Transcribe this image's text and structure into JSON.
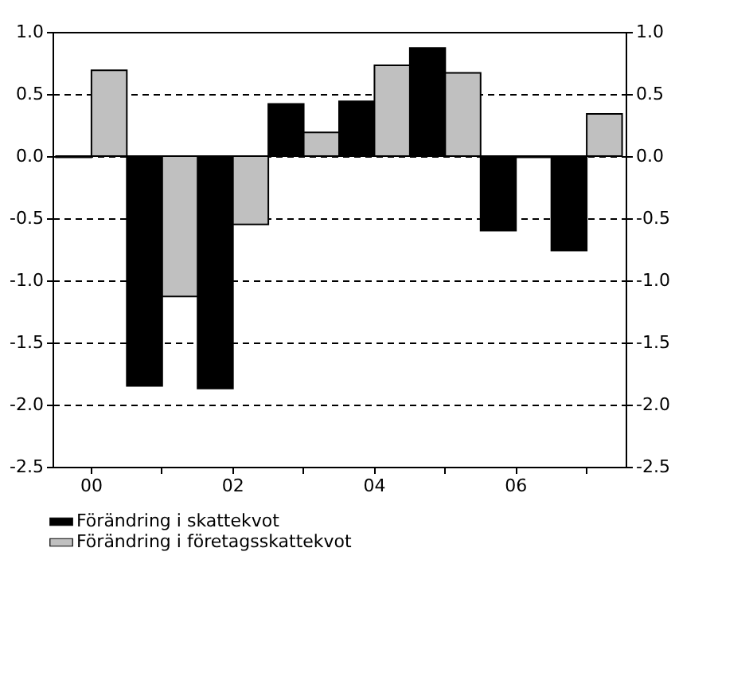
{
  "chart_data": {
    "type": "bar",
    "categories": [
      "00",
      null,
      "02",
      null,
      "04",
      null,
      "06",
      null
    ],
    "series": [
      {
        "name": "Förändring i skattekvot",
        "color": "#000000",
        "values": [
          -0.01,
          -1.85,
          -1.87,
          0.42,
          0.44,
          0.87,
          -0.6,
          -0.76
        ]
      },
      {
        "name": "Förändring i företagsskattekvot",
        "color": "#c0c0c0",
        "values": [
          0.69,
          -1.13,
          -0.55,
          0.19,
          0.73,
          0.67,
          -0.01,
          0.34
        ]
      }
    ],
    "ylim": [
      -2.5,
      1.0
    ],
    "yticks": [
      {
        "value": -2.5,
        "label": "-2.5"
      },
      {
        "value": -2.0,
        "label": "-2.0"
      },
      {
        "value": -1.5,
        "label": "-1.5"
      },
      {
        "value": -1.0,
        "label": "-1.0"
      },
      {
        "value": -0.5,
        "label": "-0.5"
      },
      {
        "value": 0,
        "label": "0.0"
      },
      {
        "value": 0.5,
        "label": "0.5"
      },
      {
        "value": 1.0,
        "label": "1.0"
      }
    ],
    "y2lim": [
      -2.5,
      1.0
    ],
    "y2ticks": [
      {
        "value": -2.5,
        "label": "-2.5"
      },
      {
        "value": -2.0,
        "label": "-2.0"
      },
      {
        "value": -1.5,
        "label": "-1.5"
      },
      {
        "value": -1.0,
        "label": "-1.0"
      },
      {
        "value": -0.5,
        "label": "-0.5"
      },
      {
        "value": 0,
        "label": "0.0"
      },
      {
        "value": 0.5,
        "label": "0.5"
      },
      {
        "value": 1.0,
        "label": "1.0"
      }
    ],
    "grid": "y",
    "legend": "bottom"
  }
}
